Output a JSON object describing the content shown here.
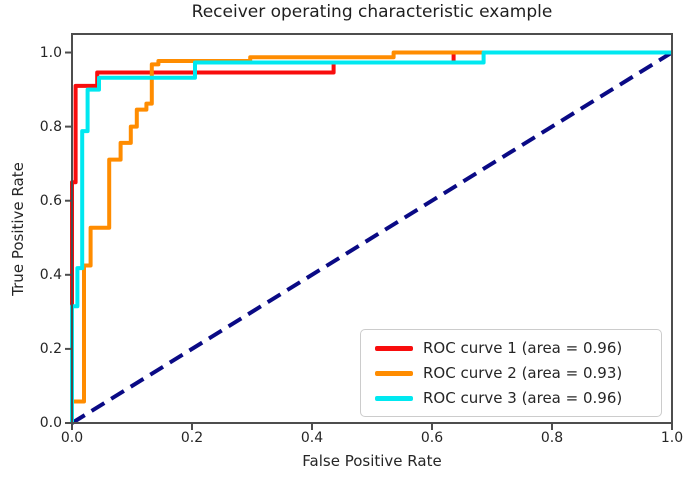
{
  "figure": {
    "background_color": "#ffffff",
    "axis_color": "#4d4d4d",
    "text_color": "#262626"
  },
  "chart_data": {
    "type": "line",
    "subtype": "roc-step-curves",
    "title": "Receiver operating characteristic example",
    "xlabel": "False Positive Rate",
    "ylabel": "True Positive Rate",
    "xlim": [
      0.0,
      1.0
    ],
    "ylim": [
      0.0,
      1.05
    ],
    "grid": false,
    "x_tick_labels": [
      "0.0",
      "0.2",
      "0.4",
      "0.6",
      "0.8",
      "1.0"
    ],
    "y_tick_labels": [
      "0.0",
      "0.2",
      "0.4",
      "0.6",
      "0.8",
      "1.0"
    ],
    "legend": {
      "position": "lower right",
      "entries": [
        "ROC curve 1 (area = 0.96)",
        "ROC curve 2 (area = 0.93)",
        "ROC curve 3 (area = 0.96)"
      ]
    },
    "series": [
      {
        "name": "ROC curve 1",
        "area": 0.96,
        "color": "#f80d0d",
        "line_style": "solid",
        "points": [
          [
            0,
            0
          ],
          [
            0,
            0.65
          ],
          [
            0.006,
            0.65
          ],
          [
            0.006,
            0.91
          ],
          [
            0.042,
            0.91
          ],
          [
            0.042,
            0.946
          ],
          [
            0.436,
            0.946
          ],
          [
            0.436,
            0.973
          ],
          [
            0.636,
            0.973
          ],
          [
            0.636,
            1.0
          ],
          [
            1,
            1
          ]
        ]
      },
      {
        "name": "ROC curve 2",
        "area": 0.93,
        "color": "#ff8c00",
        "line_style": "solid",
        "points": [
          [
            0,
            0
          ],
          [
            0,
            0.058
          ],
          [
            0.02,
            0.058
          ],
          [
            0.02,
            0.425
          ],
          [
            0.031,
            0.425
          ],
          [
            0.031,
            0.527
          ],
          [
            0.062,
            0.527
          ],
          [
            0.062,
            0.711
          ],
          [
            0.081,
            0.711
          ],
          [
            0.081,
            0.756
          ],
          [
            0.098,
            0.756
          ],
          [
            0.098,
            0.8
          ],
          [
            0.108,
            0.8
          ],
          [
            0.108,
            0.846
          ],
          [
            0.124,
            0.846
          ],
          [
            0.124,
            0.862
          ],
          [
            0.133,
            0.862
          ],
          [
            0.133,
            0.968
          ],
          [
            0.144,
            0.968
          ],
          [
            0.144,
            0.977
          ],
          [
            0.297,
            0.977
          ],
          [
            0.297,
            0.987
          ],
          [
            0.536,
            0.987
          ],
          [
            0.536,
            1.0
          ],
          [
            1,
            1
          ]
        ]
      },
      {
        "name": "ROC curve 3",
        "area": 0.96,
        "color": "#00e8f0",
        "line_style": "solid",
        "points": [
          [
            0,
            0
          ],
          [
            0,
            0.315
          ],
          [
            0.009,
            0.315
          ],
          [
            0.009,
            0.418
          ],
          [
            0.017,
            0.418
          ],
          [
            0.017,
            0.788
          ],
          [
            0.026,
            0.788
          ],
          [
            0.026,
            0.9
          ],
          [
            0.045,
            0.9
          ],
          [
            0.045,
            0.932
          ],
          [
            0.205,
            0.932
          ],
          [
            0.205,
            0.973
          ],
          [
            0.686,
            0.973
          ],
          [
            0.686,
            1.0
          ],
          [
            1,
            1
          ]
        ]
      }
    ],
    "reference_line": {
      "name": "chance-diagonal",
      "color": "#0a0a85",
      "line_style": "dashed",
      "points": [
        [
          0,
          0
        ],
        [
          1,
          1
        ]
      ]
    }
  }
}
